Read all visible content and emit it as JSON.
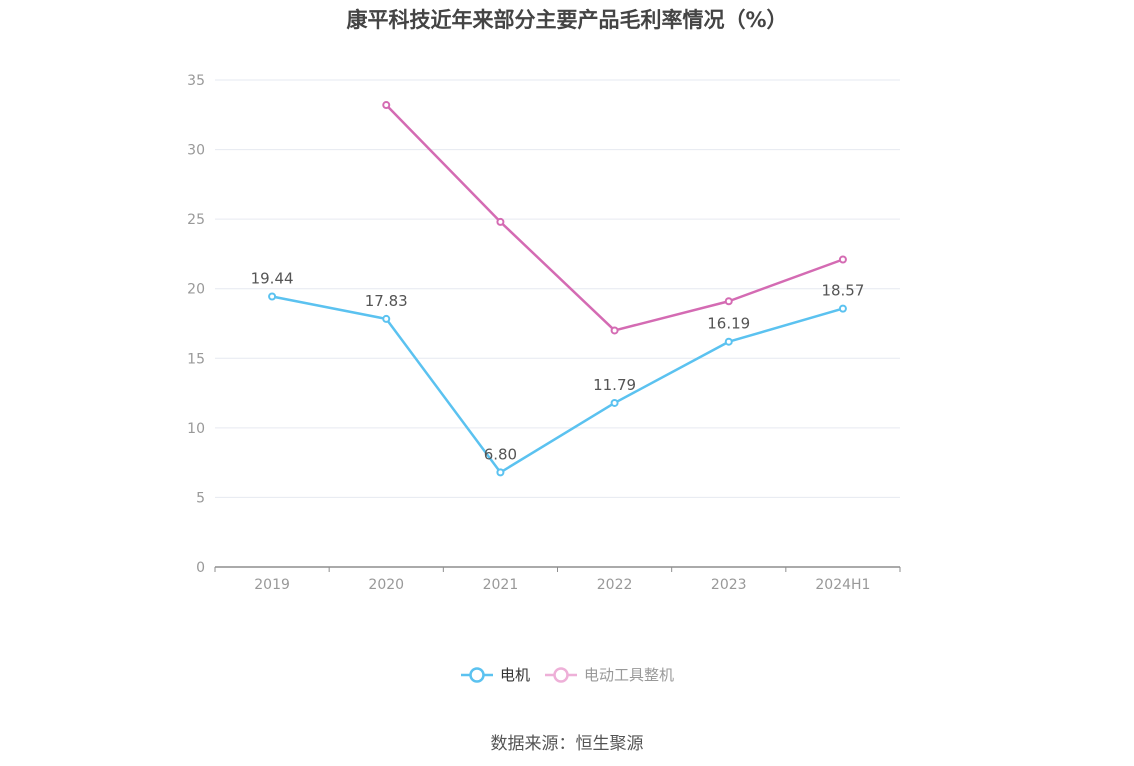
{
  "chart_data": {
    "type": "line",
    "title": "康平科技近年来部分主要产品毛利率情况（%）",
    "categories": [
      "2019",
      "2020",
      "2021",
      "2022",
      "2023",
      "2024H1"
    ],
    "ylim": [
      0,
      35
    ],
    "yticks": [
      0,
      5,
      10,
      15,
      20,
      25,
      30,
      35
    ],
    "grid": true,
    "legend_position": "bottom-center",
    "series": [
      {
        "name": "电机",
        "color": "#5bc2f0",
        "values": [
          19.44,
          17.83,
          6.8,
          11.79,
          16.19,
          18.57
        ],
        "labels": [
          "19.44",
          "17.83",
          "6.80",
          "11.79",
          "16.19",
          "18.57"
        ]
      },
      {
        "name": "电动工具整机",
        "color": "#d46bb3",
        "legend_color": "#eeb0d8",
        "values": [
          null,
          33.2,
          24.8,
          17.0,
          19.1,
          22.1
        ]
      }
    ]
  },
  "source": "数据来源：恒生聚源",
  "colors": {
    "grid": "#e6e9f0",
    "axis": "#8e8e8e",
    "tick_text": "#999999",
    "label_text": "#555555"
  }
}
